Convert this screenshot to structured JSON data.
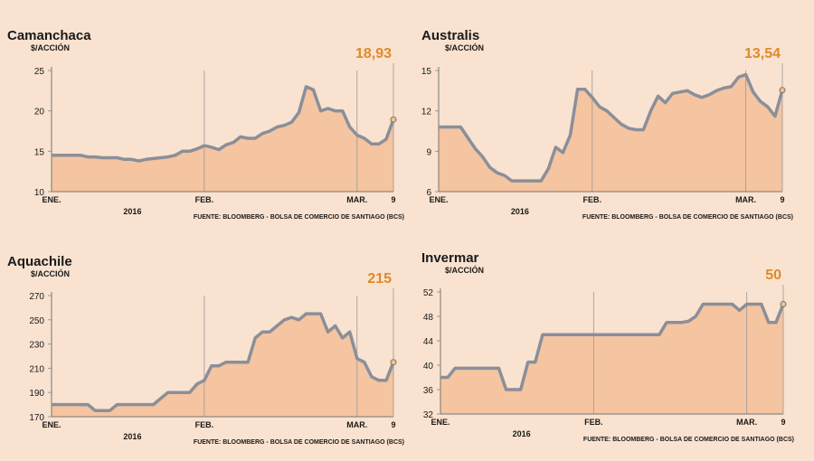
{
  "chart_data": [
    {
      "type": "area",
      "title": "Camanchaca",
      "subtitle": "$/ACCIÓN",
      "year": "2016",
      "source": "FUENTE: BLOOMBERG - BOLSA DE COMERCIO DE SANTIAGO (BCS)",
      "categories": [
        "ENE.",
        null,
        null,
        null,
        null,
        null,
        null,
        null,
        null,
        null,
        null,
        null,
        null,
        null,
        null,
        null,
        null,
        null,
        null,
        null,
        null,
        "FEB.",
        null,
        null,
        null,
        null,
        null,
        null,
        null,
        null,
        null,
        null,
        null,
        null,
        null,
        null,
        null,
        null,
        null,
        null,
        null,
        null,
        "MAR.",
        null,
        null,
        null,
        null,
        "9"
      ],
      "series": [
        {
          "name": "Camanchaca",
          "color": "#8a8f99",
          "fill": "#f5c4a0",
          "values": [
            14.5,
            14.5,
            14.5,
            14.5,
            14.5,
            14.3,
            14.3,
            14.2,
            14.2,
            14.2,
            14.0,
            14.0,
            13.8,
            14.0,
            14.1,
            14.2,
            14.3,
            14.5,
            15.0,
            15.0,
            15.3,
            15.7,
            15.5,
            15.2,
            15.8,
            16.1,
            16.8,
            16.6,
            16.6,
            17.2,
            17.5,
            18.0,
            18.2,
            18.6,
            19.8,
            23.0,
            22.6,
            20.0,
            20.3,
            20.0,
            20.0,
            18.0,
            17.0,
            16.6,
            15.9,
            15.9,
            16.5,
            18.93
          ],
          "value_labels": [
            null,
            null,
            null,
            null,
            null,
            null,
            null,
            null,
            null,
            null,
            null,
            null,
            null,
            null,
            null,
            null,
            null,
            null,
            null,
            null,
            null,
            null,
            null,
            null,
            null,
            null,
            null,
            null,
            null,
            null,
            null,
            null,
            null,
            null,
            null,
            null,
            null,
            null,
            null,
            null,
            null,
            null,
            null,
            null,
            null,
            null,
            null,
            "18,93"
          ]
        }
      ],
      "ylim": [
        10,
        25
      ],
      "yticks": [
        10,
        15,
        20,
        25
      ]
    },
    {
      "type": "area",
      "title": "Australis",
      "subtitle": "$/ACCIÓN",
      "year": "2016",
      "source": "FUENTE: BLOOMBERG - BOLSA DE COMERCIO DE SANTIAGO (BCS)",
      "categories": [
        "ENE.",
        null,
        null,
        null,
        null,
        null,
        null,
        null,
        null,
        null,
        null,
        null,
        null,
        null,
        null,
        null,
        null,
        null,
        null,
        null,
        null,
        "FEB.",
        null,
        null,
        null,
        null,
        null,
        null,
        null,
        null,
        null,
        null,
        null,
        null,
        null,
        null,
        null,
        null,
        null,
        null,
        null,
        null,
        "MAR.",
        null,
        null,
        null,
        null,
        "9"
      ],
      "series": [
        {
          "name": "Australis",
          "color": "#8a8f99",
          "fill": "#f5c4a0",
          "values": [
            10.8,
            10.8,
            10.8,
            10.8,
            10.0,
            9.2,
            8.6,
            7.8,
            7.4,
            7.2,
            6.8,
            6.8,
            6.8,
            6.8,
            6.8,
            7.7,
            9.3,
            8.9,
            10.2,
            13.6,
            13.6,
            13.0,
            12.3,
            12.0,
            11.5,
            11.0,
            10.7,
            10.6,
            10.6,
            12.0,
            13.1,
            12.6,
            13.3,
            13.4,
            13.5,
            13.2,
            13.0,
            13.2,
            13.5,
            13.7,
            13.8,
            14.5,
            14.7,
            13.4,
            12.7,
            12.3,
            11.6,
            13.54
          ],
          "value_labels": [
            null,
            null,
            null,
            null,
            null,
            null,
            null,
            null,
            null,
            null,
            null,
            null,
            null,
            null,
            null,
            null,
            null,
            null,
            null,
            null,
            null,
            null,
            null,
            null,
            null,
            null,
            null,
            null,
            null,
            null,
            null,
            null,
            null,
            null,
            null,
            null,
            null,
            null,
            null,
            null,
            null,
            null,
            null,
            null,
            null,
            null,
            null,
            "13,54"
          ]
        }
      ],
      "ylim": [
        6,
        15
      ],
      "yticks": [
        6,
        9,
        12,
        15
      ]
    },
    {
      "type": "area",
      "title": "Aquachile",
      "subtitle": "$/ACCIÓN",
      "year": "2016",
      "source": "FUENTE: BLOOMBERG - BOLSA DE COMERCIO DE SANTIAGO (BCS)",
      "categories": [
        "ENE.",
        null,
        null,
        null,
        null,
        null,
        null,
        null,
        null,
        null,
        null,
        null,
        null,
        null,
        null,
        null,
        null,
        null,
        null,
        null,
        null,
        "FEB.",
        null,
        null,
        null,
        null,
        null,
        null,
        null,
        null,
        null,
        null,
        null,
        null,
        null,
        null,
        null,
        null,
        null,
        null,
        null,
        null,
        "MAR.",
        null,
        null,
        null,
        null,
        "9"
      ],
      "series": [
        {
          "name": "Aquachile",
          "color": "#8a8f99",
          "fill": "#f5c4a0",
          "values": [
            180,
            180,
            180,
            180,
            180,
            180,
            175,
            175,
            175,
            180,
            180,
            180,
            180,
            180,
            180,
            185,
            190,
            190,
            190,
            190,
            197,
            200,
            212,
            212,
            215,
            215,
            215,
            215,
            235,
            240,
            240,
            245,
            250,
            252,
            250,
            255,
            255,
            255,
            240,
            245,
            235,
            240,
            218,
            215,
            203,
            200,
            200,
            215
          ],
          "value_labels": [
            null,
            null,
            null,
            null,
            null,
            null,
            null,
            null,
            null,
            null,
            null,
            null,
            null,
            null,
            null,
            null,
            null,
            null,
            null,
            null,
            null,
            null,
            null,
            null,
            null,
            null,
            null,
            null,
            null,
            null,
            null,
            null,
            null,
            null,
            null,
            null,
            null,
            null,
            null,
            null,
            null,
            null,
            null,
            null,
            null,
            null,
            null,
            "215"
          ]
        }
      ],
      "ylim": [
        170,
        270
      ],
      "yticks": [
        170,
        190,
        210,
        230,
        250,
        270
      ]
    },
    {
      "type": "area",
      "title": "Invermar",
      "subtitle": "$/ACCIÓN",
      "year": "2016",
      "source": "FUENTE: BLOOMBERG - BOLSA DE COMERCIO DE SANTIAGO (BCS)",
      "categories": [
        "ENE.",
        null,
        null,
        null,
        null,
        null,
        null,
        null,
        null,
        null,
        null,
        null,
        null,
        null,
        null,
        null,
        null,
        null,
        null,
        null,
        null,
        "FEB.",
        null,
        null,
        null,
        null,
        null,
        null,
        null,
        null,
        null,
        null,
        null,
        null,
        null,
        null,
        null,
        null,
        null,
        null,
        null,
        null,
        "MAR.",
        null,
        null,
        null,
        null,
        "9"
      ],
      "series": [
        {
          "name": "Invermar",
          "color": "#8a8f99",
          "fill": "#f5c4a0",
          "values": [
            38,
            38,
            39.5,
            39.5,
            39.5,
            39.5,
            39.5,
            39.5,
            39.5,
            36,
            36,
            36,
            40.5,
            40.5,
            45,
            45,
            45,
            45,
            45,
            45,
            45,
            45,
            45,
            45,
            45,
            45,
            45,
            45,
            45,
            45,
            45,
            47,
            47,
            47,
            47.2,
            48,
            50,
            50,
            50,
            50,
            50,
            49,
            50,
            50,
            50,
            47,
            47,
            50
          ],
          "value_labels": [
            null,
            null,
            null,
            null,
            null,
            null,
            null,
            null,
            null,
            null,
            null,
            null,
            null,
            null,
            null,
            null,
            null,
            null,
            null,
            null,
            null,
            null,
            null,
            null,
            null,
            null,
            null,
            null,
            null,
            null,
            null,
            null,
            null,
            null,
            null,
            null,
            null,
            null,
            null,
            null,
            null,
            null,
            null,
            null,
            null,
            null,
            null,
            "50"
          ]
        }
      ],
      "ylim": [
        32,
        52
      ],
      "yticks": [
        32,
        36,
        40,
        44,
        48,
        52
      ]
    }
  ]
}
